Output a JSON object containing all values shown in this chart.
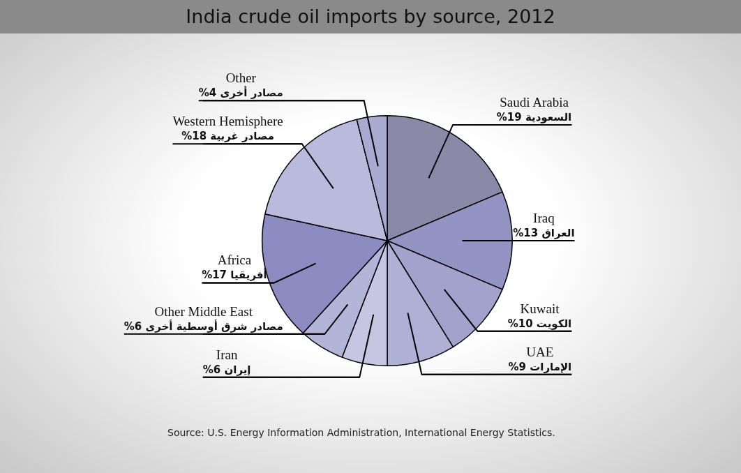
{
  "chart_data": {
    "type": "pie",
    "title": "India crude oil imports by source, 2012",
    "categories": [
      "Saudi Arabia",
      "Iraq",
      "Kuwait",
      "UAE",
      "Iran",
      "Other Middle East",
      "Africa",
      "Western Hemisphere",
      "Other"
    ],
    "values": [
      19,
      13,
      10,
      9,
      6,
      6,
      17,
      18,
      4
    ],
    "value_labels": [
      "السعودية 19%",
      "العراق 13%",
      "الكويت 10%",
      "الإمارات 9%",
      "إيران 6%",
      "مصادر شرق أوسطية أخرى 6%",
      "أفريقيا 17%",
      "مصادر غربية 18%",
      "مصادر أخرى 4%"
    ],
    "colors": [
      "#8a8aa8",
      "#9494c4",
      "#a2a2cc",
      "#b0b0d6",
      "#c6c6e2",
      "#b4b4d8",
      "#8c8cc2",
      "#babadc",
      "#a9a9d2"
    ],
    "legend": false,
    "annotations": [
      "Source: U.S. Energy Information Administration, International Energy Statistics."
    ]
  }
}
